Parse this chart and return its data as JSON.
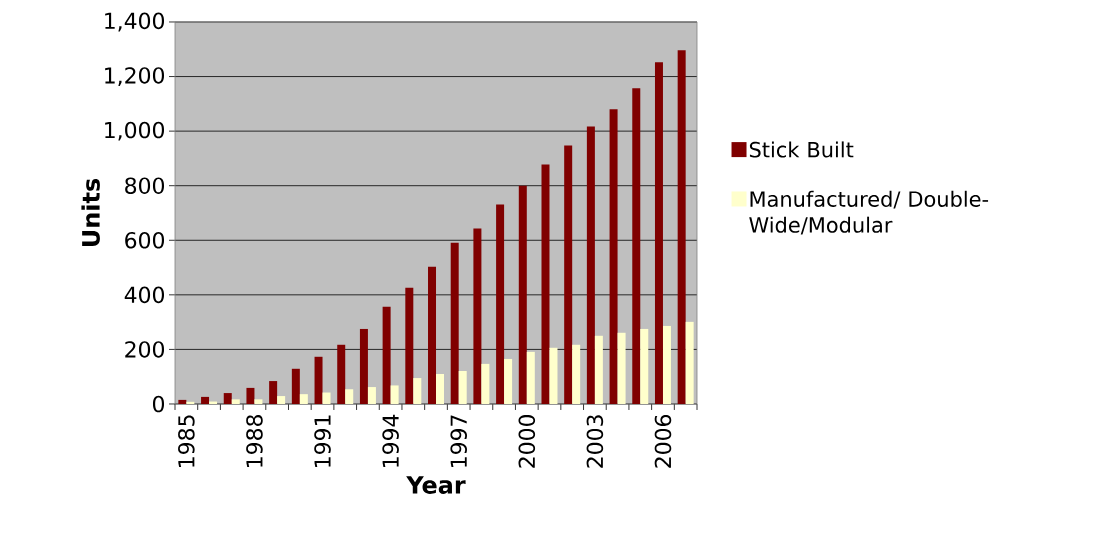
{
  "chart_data": {
    "type": "bar",
    "xlabel": "Year",
    "ylabel": "Units",
    "categories": [
      "1985",
      null,
      null,
      "1988",
      null,
      null,
      "1991",
      null,
      null,
      "1994",
      null,
      null,
      "1997",
      null,
      null,
      "2000",
      null,
      null,
      "2003",
      null,
      null,
      "2006",
      null
    ],
    "series": [
      {
        "name": "Stick Built",
        "color": "#800000",
        "values": [
          15,
          26,
          40,
          59,
          84,
          129,
          173,
          217,
          275,
          356,
          426,
          503,
          591,
          643,
          731,
          800,
          878,
          947,
          1017,
          1080,
          1157,
          1252,
          1296
        ]
      },
      {
        "name": "Manufactured/ Double-Wide/Modular",
        "color": "#ffffcc",
        "values": [
          8,
          9,
          17,
          17,
          29,
          36,
          42,
          54,
          62,
          68,
          95,
          110,
          121,
          147,
          165,
          191,
          206,
          217,
          250,
          261,
          275,
          286,
          301
        ]
      }
    ],
    "ylim": [
      0,
      1400
    ],
    "yticks": [
      0,
      200,
      400,
      600,
      800,
      {
        "value": 1000,
        "label": "1,000"
      },
      {
        "value": 1200,
        "label": "1,200"
      },
      {
        "value": 1400,
        "label": "1,400"
      }
    ],
    "grid": "y",
    "legend": "right"
  }
}
